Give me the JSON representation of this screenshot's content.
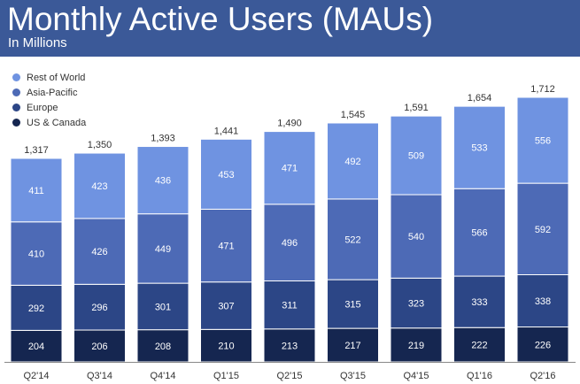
{
  "header": {
    "title": "Monthly Active Users (MAUs)",
    "subtitle": "In Millions"
  },
  "colors": {
    "header_bg": "#3b5998",
    "rest_of_world": "#6f93e1",
    "asia_pacific": "#4d6ab6",
    "europe": "#2c4686",
    "us_canada": "#152650"
  },
  "chart_data": {
    "type": "bar",
    "stacked": true,
    "categories": [
      "Q2'14",
      "Q3'14",
      "Q4'14",
      "Q1'15",
      "Q2'15",
      "Q3'15",
      "Q4'15",
      "Q1'16",
      "Q2'16"
    ],
    "series": [
      {
        "name": "US & Canada",
        "color": "#152650",
        "values": [
          204,
          206,
          208,
          210,
          213,
          217,
          219,
          222,
          226
        ]
      },
      {
        "name": "Europe",
        "color": "#2c4686",
        "values": [
          292,
          296,
          301,
          307,
          311,
          315,
          323,
          333,
          338
        ]
      },
      {
        "name": "Asia-Pacific",
        "color": "#4d6ab6",
        "values": [
          410,
          426,
          449,
          471,
          496,
          522,
          540,
          566,
          592
        ]
      },
      {
        "name": "Rest of World",
        "color": "#6f93e1",
        "values": [
          411,
          423,
          436,
          453,
          471,
          492,
          509,
          533,
          556
        ]
      }
    ],
    "totals": [
      "1,317",
      "1,350",
      "1,393",
      "1,441",
      "1,490",
      "1,545",
      "1,591",
      "1,654",
      "1,712"
    ],
    "legend": [
      "Rest of World",
      "Asia-Pacific",
      "Europe",
      "US & Canada"
    ],
    "legend_position": "top-left",
    "ylim": [
      0,
      1712
    ],
    "grid": false
  }
}
